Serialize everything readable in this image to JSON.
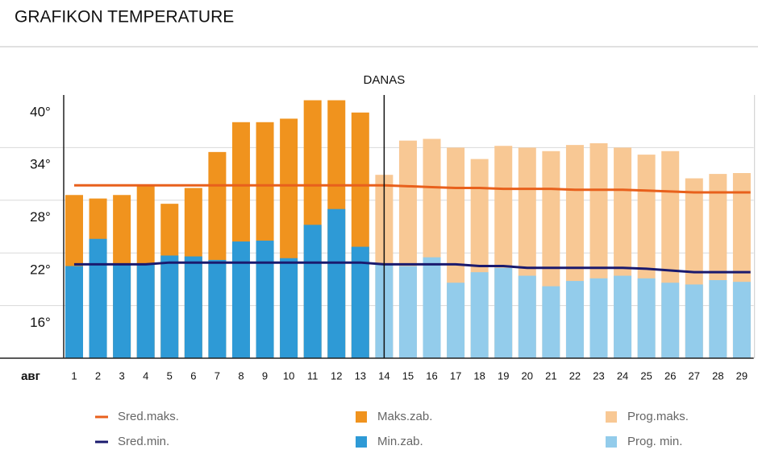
{
  "chart_data": {
    "type": "bar",
    "title": "GRAFIKON TEMPERATURE",
    "x_label": "авг",
    "annotation": {
      "text": "DANAS",
      "category": "14"
    },
    "categories": [
      "1",
      "2",
      "3",
      "4",
      "5",
      "6",
      "7",
      "8",
      "9",
      "10",
      "11",
      "12",
      "13",
      "14",
      "15",
      "16",
      "17",
      "18",
      "19",
      "20",
      "21",
      "22",
      "23",
      "24",
      "25",
      "26",
      "27",
      "28",
      "29"
    ],
    "ylim": [
      12,
      42
    ],
    "yticks": [
      {
        "value": 16,
        "label": "16°"
      },
      {
        "value": 22,
        "label": "22°"
      },
      {
        "value": 28,
        "label": "28°"
      },
      {
        "value": 34,
        "label": "34°"
      },
      {
        "value": 40,
        "label": "40°"
      }
    ],
    "grid": true,
    "grid_lines": [
      18,
      24,
      30,
      36
    ],
    "series": [
      {
        "name": "Sred.maks.",
        "type": "line",
        "color": "#e8601c",
        "values": [
          31.7,
          31.7,
          31.7,
          31.7,
          31.7,
          31.7,
          31.7,
          31.7,
          31.7,
          31.7,
          31.7,
          31.7,
          31.7,
          31.7,
          31.6,
          31.5,
          31.4,
          31.4,
          31.3,
          31.3,
          31.3,
          31.2,
          31.2,
          31.2,
          31.1,
          31.0,
          30.9,
          30.9,
          30.9
        ]
      },
      {
        "name": "Maks.zab.",
        "type": "bar",
        "color": "#f0931e",
        "values": [
          30.6,
          30.2,
          30.6,
          31.7,
          29.6,
          31.4,
          35.5,
          38.9,
          38.9,
          39.3,
          41.4,
          41.4,
          40.0,
          null,
          null,
          null,
          null,
          null,
          null,
          null,
          null,
          null,
          null,
          null,
          null,
          null,
          null,
          null,
          null
        ]
      },
      {
        "name": "Prog.maks.",
        "type": "bar",
        "color": "#f8c894",
        "values": [
          null,
          null,
          null,
          null,
          null,
          null,
          null,
          null,
          null,
          null,
          null,
          null,
          null,
          32.9,
          36.8,
          37.0,
          36.0,
          34.7,
          36.2,
          36.0,
          35.6,
          36.3,
          36.5,
          36.0,
          35.2,
          35.6,
          32.5,
          33.0,
          33.1
        ]
      },
      {
        "name": "Sred.min.",
        "type": "line",
        "color": "#1a1a6e",
        "values": [
          22.7,
          22.7,
          22.7,
          22.7,
          22.9,
          22.9,
          22.9,
          22.9,
          22.9,
          22.9,
          22.9,
          22.9,
          22.9,
          22.7,
          22.7,
          22.7,
          22.7,
          22.5,
          22.5,
          22.3,
          22.3,
          22.3,
          22.3,
          22.3,
          22.2,
          22.0,
          21.8,
          21.8,
          21.8
        ]
      },
      {
        "name": "Min.zab.",
        "type": "bar",
        "color": "#2e9ad6",
        "values": [
          22.5,
          25.6,
          22.8,
          22.8,
          23.7,
          23.6,
          23.2,
          25.3,
          25.4,
          23.4,
          27.2,
          29.0,
          24.7,
          null,
          null,
          null,
          null,
          null,
          null,
          null,
          null,
          null,
          null,
          null,
          null,
          null,
          null,
          null,
          null
        ]
      },
      {
        "name": "Prog. min.",
        "type": "bar",
        "color": "#93cceb",
        "values": [
          null,
          null,
          null,
          null,
          null,
          null,
          null,
          null,
          null,
          null,
          null,
          null,
          null,
          22.8,
          22.5,
          23.5,
          20.6,
          21.8,
          22.3,
          21.4,
          20.2,
          20.8,
          21.1,
          21.4,
          21.1,
          20.6,
          20.4,
          20.9,
          20.7
        ]
      }
    ]
  }
}
